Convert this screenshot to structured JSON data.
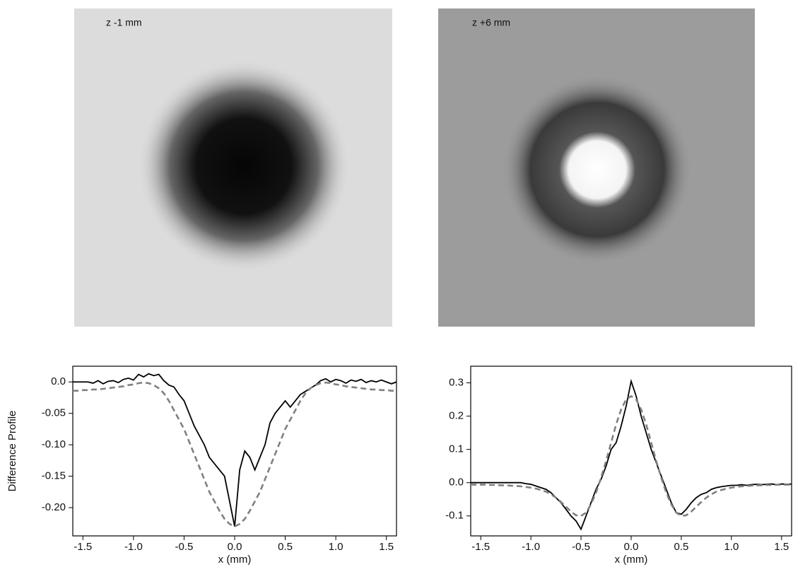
{
  "panels": [
    {
      "label": "z -1 mm"
    },
    {
      "label": "z +6 mm"
    }
  ],
  "chart_data": [
    {
      "type": "line",
      "xlabel": "x (mm)",
      "ylabel": "Difference Profile",
      "xlim": [
        -1.6,
        1.6
      ],
      "ylim": [
        -0.245,
        0.025
      ],
      "xticks": [
        -1.5,
        {
          "value": -1,
          "label": "-1.0"
        },
        -0.5,
        {
          "value": 0,
          "label": "0.0"
        },
        0.5,
        {
          "value": 1,
          "label": "1.0"
        },
        1.5
      ],
      "yticks": [
        {
          "value": 0,
          "label": "0.0"
        },
        -0.05,
        {
          "value": -0.1,
          "label": "-0.10"
        },
        -0.15,
        {
          "value": -0.2,
          "label": "-0.20"
        }
      ],
      "x": [
        -1.6,
        -1.55,
        -1.5,
        -1.45,
        -1.4,
        -1.35,
        -1.3,
        -1.25,
        -1.2,
        -1.15,
        -1.1,
        -1.05,
        -1.0,
        -0.95,
        -0.9,
        -0.85,
        -0.8,
        -0.75,
        -0.7,
        -0.65,
        -0.6,
        -0.55,
        -0.5,
        -0.45,
        -0.4,
        -0.35,
        -0.3,
        -0.25,
        -0.2,
        -0.15,
        -0.1,
        -0.05,
        0,
        0.05,
        0.1,
        0.15,
        0.2,
        0.25,
        0.3,
        0.35,
        0.4,
        0.45,
        0.5,
        0.55,
        0.6,
        0.65,
        0.7,
        0.75,
        0.8,
        0.85,
        0.9,
        0.95,
        1.0,
        1.05,
        1.1,
        1.15,
        1.2,
        1.25,
        1.3,
        1.35,
        1.4,
        1.45,
        1.5,
        1.55,
        1.6
      ],
      "series": [
        {
          "color": "#000000",
          "linestyle": "solid",
          "values": [
            0,
            0,
            0,
            0,
            -0.002,
            0.002,
            -0.003,
            0.001,
            0.002,
            -0.001,
            0.004,
            0.006,
            0.003,
            0.012,
            0.008,
            0.013,
            0.01,
            0.012,
            0.002,
            -0.005,
            -0.008,
            -0.02,
            -0.03,
            -0.05,
            -0.07,
            -0.085,
            -0.1,
            -0.12,
            -0.13,
            -0.14,
            -0.15,
            -0.19,
            -0.23,
            -0.14,
            -0.11,
            -0.12,
            -0.14,
            -0.12,
            -0.1,
            -0.065,
            -0.05,
            -0.04,
            -0.03,
            -0.04,
            -0.03,
            -0.02,
            -0.015,
            -0.01,
            -0.005,
            0.002,
            0.005,
            0,
            0.004,
            0.002,
            -0.002,
            0.003,
            0.001,
            0.004,
            -0.001,
            0.002,
            0,
            0.003,
            0,
            -0.003,
            0
          ]
        },
        {
          "color": "#808080",
          "linestyle": "dashed",
          "values": [
            -0.014,
            -0.014,
            -0.013,
            -0.013,
            -0.012,
            -0.012,
            -0.011,
            -0.01,
            -0.009,
            -0.008,
            -0.007,
            -0.005,
            -0.004,
            -0.002,
            -0.001,
            -0.002,
            -0.005,
            -0.01,
            -0.018,
            -0.03,
            -0.045,
            -0.06,
            -0.075,
            -0.095,
            -0.115,
            -0.135,
            -0.155,
            -0.175,
            -0.19,
            -0.205,
            -0.218,
            -0.226,
            -0.23,
            -0.226,
            -0.218,
            -0.205,
            -0.19,
            -0.175,
            -0.155,
            -0.135,
            -0.115,
            -0.095,
            -0.075,
            -0.06,
            -0.045,
            -0.03,
            -0.018,
            -0.01,
            -0.005,
            -0.002,
            -0.001,
            -0.002,
            -0.004,
            -0.005,
            -0.007,
            -0.008,
            -0.009,
            -0.01,
            -0.011,
            -0.012,
            -0.012,
            -0.013,
            -0.013,
            -0.014,
            -0.014
          ]
        }
      ]
    },
    {
      "type": "line",
      "xlabel": "x (mm)",
      "xlim": [
        -1.6,
        1.6
      ],
      "ylim": [
        -0.16,
        0.35
      ],
      "xticks": [
        -1.5,
        {
          "value": -1,
          "label": "-1.0"
        },
        -0.5,
        {
          "value": 0,
          "label": "0.0"
        },
        0.5,
        {
          "value": 1,
          "label": "1.0"
        },
        1.5
      ],
      "yticks": [
        0.3,
        0.2,
        0.1,
        {
          "value": 0,
          "label": "0.0"
        },
        -0.1
      ],
      "x": [
        -1.6,
        -1.55,
        -1.5,
        -1.45,
        -1.4,
        -1.35,
        -1.3,
        -1.25,
        -1.2,
        -1.15,
        -1.1,
        -1.05,
        -1.0,
        -0.95,
        -0.9,
        -0.85,
        -0.8,
        -0.75,
        -0.7,
        -0.65,
        -0.6,
        -0.55,
        -0.5,
        -0.45,
        -0.4,
        -0.35,
        -0.3,
        -0.25,
        -0.2,
        -0.15,
        -0.1,
        -0.05,
        0,
        0.05,
        0.1,
        0.15,
        0.2,
        0.25,
        0.3,
        0.35,
        0.4,
        0.45,
        0.5,
        0.55,
        0.6,
        0.65,
        0.7,
        0.75,
        0.8,
        0.85,
        0.9,
        0.95,
        1.0,
        1.05,
        1.1,
        1.15,
        1.2,
        1.25,
        1.3,
        1.35,
        1.4,
        1.45,
        1.5,
        1.55,
        1.6
      ],
      "series": [
        {
          "color": "#000000",
          "linestyle": "solid",
          "values": [
            0,
            0,
            0,
            0,
            0,
            0,
            0,
            0,
            0,
            0,
            0,
            -0.003,
            -0.005,
            -0.01,
            -0.015,
            -0.02,
            -0.03,
            -0.045,
            -0.06,
            -0.08,
            -0.1,
            -0.115,
            -0.14,
            -0.1,
            -0.06,
            -0.02,
            0.01,
            0.05,
            0.1,
            0.12,
            0.17,
            0.23,
            0.305,
            0.26,
            0.2,
            0.15,
            0.1,
            0.06,
            0.02,
            -0.02,
            -0.06,
            -0.09,
            -0.095,
            -0.08,
            -0.06,
            -0.045,
            -0.035,
            -0.03,
            -0.02,
            -0.015,
            -0.012,
            -0.01,
            -0.008,
            -0.008,
            -0.006,
            -0.008,
            -0.006,
            -0.005,
            -0.006,
            -0.005,
            -0.004,
            -0.006,
            -0.004,
            -0.005,
            -0.004
          ]
        },
        {
          "color": "#808080",
          "linestyle": "dashed",
          "values": [
            -0.006,
            -0.006,
            -0.006,
            -0.006,
            -0.007,
            -0.007,
            -0.008,
            -0.008,
            -0.009,
            -0.01,
            -0.011,
            -0.013,
            -0.015,
            -0.018,
            -0.022,
            -0.027,
            -0.035,
            -0.045,
            -0.058,
            -0.072,
            -0.087,
            -0.098,
            -0.1,
            -0.09,
            -0.065,
            -0.03,
            0.015,
            0.065,
            0.12,
            0.175,
            0.22,
            0.25,
            0.26,
            0.25,
            0.22,
            0.175,
            0.12,
            0.065,
            0.015,
            -0.03,
            -0.065,
            -0.09,
            -0.1,
            -0.098,
            -0.087,
            -0.072,
            -0.058,
            -0.045,
            -0.035,
            -0.027,
            -0.022,
            -0.018,
            -0.015,
            -0.013,
            -0.011,
            -0.01,
            -0.009,
            -0.008,
            -0.008,
            -0.007,
            -0.007,
            -0.006,
            -0.006,
            -0.006,
            -0.006
          ]
        }
      ]
    }
  ]
}
